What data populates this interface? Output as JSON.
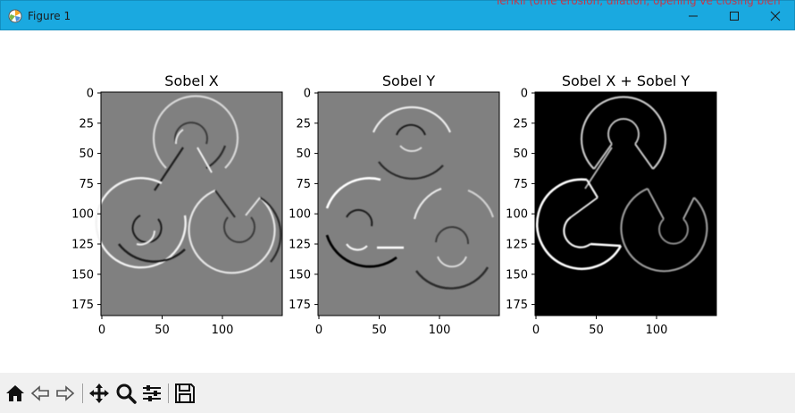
{
  "window": {
    "title": "Figure 1",
    "background_text": "Terikil (ome erosion, dilation, opening ve closing bien"
  },
  "figure": {
    "axes": [
      {
        "title": "Sobel X",
        "xticks": [
          "0",
          "50",
          "100"
        ],
        "yticks": [
          "0",
          "25",
          "50",
          "75",
          "100",
          "125",
          "150",
          "175"
        ]
      },
      {
        "title": "Sobel Y",
        "xticks": [
          "0",
          "50",
          "100"
        ],
        "yticks": [
          "0",
          "25",
          "50",
          "75",
          "100",
          "125",
          "150",
          "175"
        ]
      },
      {
        "title": "Sobel X + Sobel Y",
        "xticks": [
          "0",
          "50",
          "100"
        ],
        "yticks": [
          "0",
          "25",
          "50",
          "75",
          "100",
          "125",
          "150",
          "175"
        ]
      }
    ]
  },
  "toolbar": {
    "icons": [
      "home-icon",
      "back-icon",
      "forward-icon",
      "pan-icon",
      "zoom-icon",
      "configure-subplots-icon",
      "save-icon"
    ]
  },
  "colors": {
    "titlebar": "#1aa9e0",
    "sobel_gray": "#808080",
    "toolbar_bg": "#f0f0f0"
  }
}
